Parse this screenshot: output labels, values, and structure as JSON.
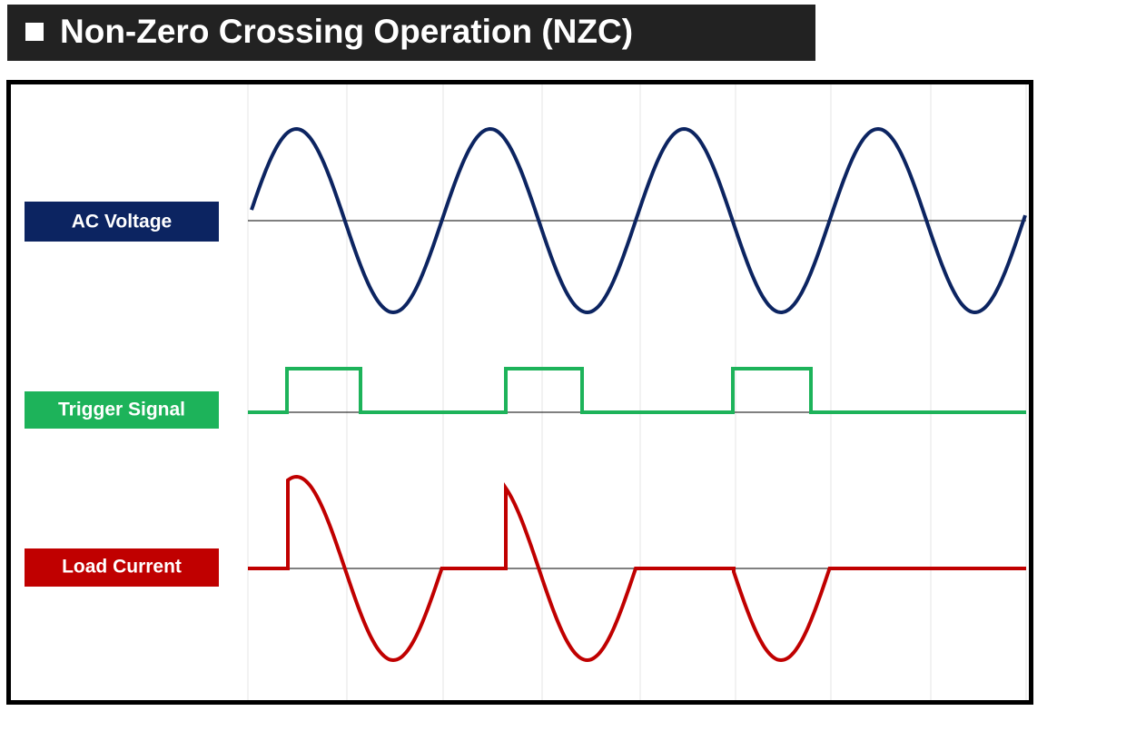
{
  "header": {
    "title": "Non-Zero Crossing Operation (NZC)"
  },
  "signals": [
    {
      "label": "AC Voltage"
    },
    {
      "label": "Trigger Signal"
    },
    {
      "label": "Load Current"
    }
  ]
}
